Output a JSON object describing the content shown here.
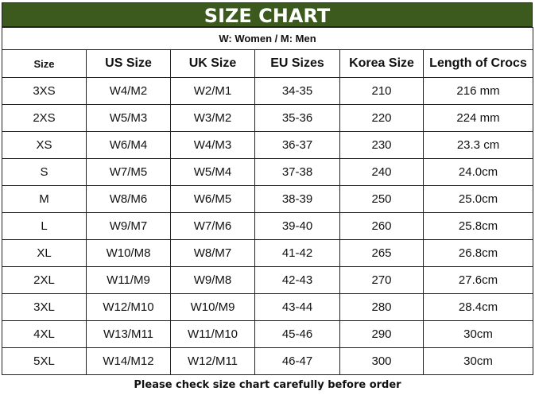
{
  "title": "SIZE CHART",
  "subtitle": "W: Women / M: Men",
  "title_color": "#3c5a1e",
  "headers": [
    "Size",
    "US Size",
    "UK Size",
    "EU Sizes",
    "Korea Size",
    "Length of Crocs"
  ],
  "rows": [
    [
      "3XS",
      "W4/M2",
      "W2/M1",
      "34-35",
      "210",
      "216 mm"
    ],
    [
      "2XS",
      "W5/M3",
      "W3/M2",
      "35-36",
      "220",
      "224 mm"
    ],
    [
      "XS",
      "W6/M4",
      "W4/M3",
      "36-37",
      "230",
      "23.3 cm"
    ],
    [
      "S",
      "W7/M5",
      "W5/M4",
      "37-38",
      "240",
      "24.0cm"
    ],
    [
      "M",
      "W8/M6",
      "W6/M5",
      "38-39",
      "250",
      "25.0cm"
    ],
    [
      "L",
      "W9/M7",
      "W7/M6",
      "39-40",
      "260",
      "25.8cm"
    ],
    [
      "XL",
      "W10/M8",
      "W8/M7",
      "41-42",
      "265",
      "26.8cm"
    ],
    [
      "2XL",
      "W11/M9",
      "W9/M8",
      "42-43",
      "270",
      "27.6cm"
    ],
    [
      "3XL",
      "W12/M10",
      "W10/M9",
      "43-44",
      "280",
      "28.4cm"
    ],
    [
      "4XL",
      "W13/M11",
      "W11/M10",
      "45-46",
      "290",
      "30cm"
    ],
    [
      "5XL",
      "W14/M12",
      "W12/M11",
      "46-47",
      "300",
      "30cm"
    ]
  ],
  "footer_note": "Please check size chart carefully before order"
}
